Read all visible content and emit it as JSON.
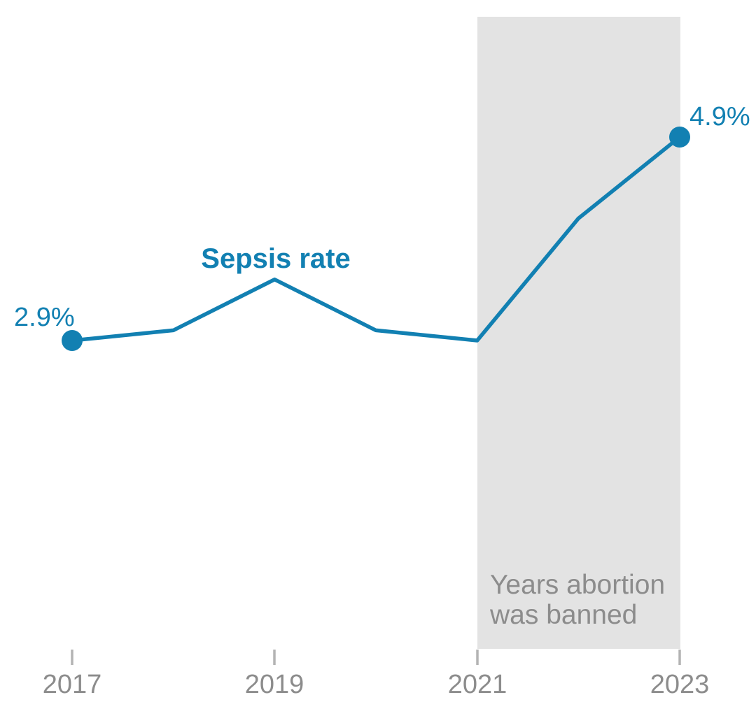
{
  "chart_data": {
    "type": "line",
    "title": "Sepsis rate",
    "xlabel": "",
    "ylabel": "",
    "unit": "percent",
    "series": [
      {
        "name": "Sepsis rate",
        "x": [
          2017,
          2018,
          2019,
          2020,
          2021,
          2022,
          2023
        ],
        "values": [
          2.9,
          3.0,
          3.5,
          3.0,
          2.9,
          4.1,
          4.9
        ]
      }
    ],
    "x_tick_labels": [
      "2017",
      "2019",
      "2021",
      "2023"
    ],
    "x_tick_years": [
      2017,
      2019,
      2021,
      2023
    ],
    "x_range": [
      2017,
      2023
    ],
    "y_range_pct": [
      2.9,
      4.9
    ],
    "grid": false,
    "legend": "none",
    "annotations": {
      "start_value_label": "2.9%",
      "end_value_label": "4.9%",
      "banned_band": {
        "label_lines": [
          "Years abortion",
          "was banned"
        ],
        "x_start_year": 2021,
        "x_end_year": 2023
      }
    },
    "colors": {
      "line": "#1280b2",
      "band": "#e3e3e3",
      "annotation_text": "#8c8c8c",
      "tick_label_text": "#8c8c8c",
      "tick_mark": "#b3b3b3",
      "background": "#ffffff"
    }
  }
}
